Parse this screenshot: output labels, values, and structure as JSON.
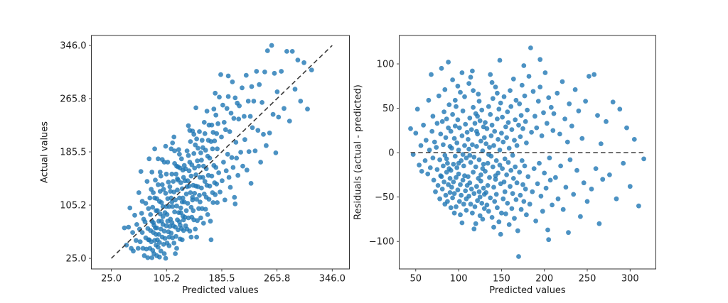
{
  "figure": {
    "background": "#ffffff",
    "marker_color": "#1f77b4",
    "marker_opacity": 0.8,
    "spine_color": "#333333",
    "refline_color": "#3a3a3a"
  },
  "chart_data": [
    {
      "type": "scatter",
      "title": "",
      "xlabel": "Predicted values",
      "ylabel": "Actual values",
      "xlim": [
        -4,
        371
      ],
      "ylim": [
        9,
        361
      ],
      "grid": false,
      "legend": "none",
      "xticks": {
        "values": [
          25,
          105.25,
          185.5,
          265.75,
          346
        ],
        "labels": [
          "25.0",
          "105.2",
          "185.5",
          "265.8",
          "346.0"
        ]
      },
      "yticks": {
        "values": [
          25,
          105.25,
          185.5,
          265.75,
          346
        ],
        "labels": [
          "25.0",
          "105.2",
          "185.5",
          "265.8",
          "346.0"
        ]
      },
      "reference_line": {
        "kind": "identity",
        "style": "dashed",
        "x1": 25,
        "y1": 25,
        "x2": 346,
        "y2": 346
      },
      "point_mapping": "x=predicted, y=predicted+residual"
    },
    {
      "type": "scatter",
      "title": "",
      "xlabel": "Predicted values",
      "ylabel": "Residuals (actual - predicted)",
      "xlim": [
        30.7,
        330
      ],
      "ylim": [
        -131,
        132
      ],
      "grid": false,
      "legend": "none",
      "xticks": {
        "values": [
          50,
          100,
          150,
          200,
          250,
          300
        ],
        "labels": [
          "50",
          "100",
          "150",
          "200",
          "250",
          "300"
        ]
      },
      "yticks": {
        "values": [
          -100,
          -50,
          0,
          50,
          100
        ],
        "labels": [
          "−100",
          "−50",
          "0",
          "50",
          "100"
        ]
      },
      "reference_line": {
        "kind": "zero",
        "style": "dashed",
        "x1": 44,
        "y1": 0,
        "x2": 317,
        "y2": 0
      },
      "point_mapping": "x=predicted, y=residual"
    }
  ],
  "dataset": {
    "points_predicted_residual": [
      [
        44,
        27
      ],
      [
        47,
        -2
      ],
      [
        50,
        22
      ],
      [
        52,
        49
      ],
      [
        54,
        -14
      ],
      [
        56,
        8
      ],
      [
        57,
        -21
      ],
      [
        59,
        31
      ],
      [
        61,
        -9
      ],
      [
        62,
        14
      ],
      [
        64,
        -24
      ],
      [
        65,
        59
      ],
      [
        66,
        3
      ],
      [
        67,
        -17
      ],
      [
        68,
        88
      ],
      [
        69,
        24
      ],
      [
        70,
        -6
      ],
      [
        70,
        41
      ],
      [
        71,
        -31
      ],
      [
        72,
        12
      ],
      [
        73,
        -44
      ],
      [
        74,
        6
      ],
      [
        75,
        -19
      ],
      [
        75,
        33
      ],
      [
        76,
        -37
      ],
      [
        77,
        64
      ],
      [
        78,
        -8
      ],
      [
        78,
        -52
      ],
      [
        79,
        21
      ],
      [
        80,
        -27
      ],
      [
        80,
        95
      ],
      [
        81,
        -41
      ],
      [
        82,
        9
      ],
      [
        82,
        -15
      ],
      [
        83,
        46
      ],
      [
        83,
        -33
      ],
      [
        84,
        -3
      ],
      [
        84,
        71
      ],
      [
        85,
        -48
      ],
      [
        85,
        17
      ],
      [
        86,
        -22
      ],
      [
        86,
        38
      ],
      [
        87,
        -55
      ],
      [
        87,
        -12
      ],
      [
        88,
        28
      ],
      [
        88,
        -36
      ],
      [
        89,
        54
      ],
      [
        89,
        -18
      ],
      [
        90,
        -45
      ],
      [
        90,
        7
      ],
      [
        90,
        -29
      ],
      [
        88,
        102
      ],
      [
        86,
        -7
      ],
      [
        84,
        -58
      ],
      [
        81,
        35
      ],
      [
        79,
        -26
      ],
      [
        91,
        -20
      ],
      [
        91,
        24
      ],
      [
        92,
        -39
      ],
      [
        92,
        5
      ],
      [
        93,
        -51
      ],
      [
        93,
        43
      ],
      [
        94,
        -13
      ],
      [
        94,
        -33
      ],
      [
        95,
        16
      ],
      [
        95,
        -46
      ],
      [
        96,
        -4
      ],
      [
        96,
        59
      ],
      [
        97,
        -28
      ],
      [
        97,
        -61
      ],
      [
        98,
        11
      ],
      [
        98,
        -17
      ],
      [
        99,
        -42
      ],
      [
        99,
        37
      ],
      [
        100,
        -24
      ],
      [
        100,
        3
      ],
      [
        101,
        -55
      ],
      [
        101,
        28
      ],
      [
        102,
        -36
      ],
      [
        102,
        68
      ],
      [
        103,
        -9
      ],
      [
        103,
        -48
      ],
      [
        104,
        -79
      ],
      [
        104,
        19
      ],
      [
        105,
        -31
      ],
      [
        105,
        47
      ],
      [
        106,
        -15
      ],
      [
        106,
        -58
      ],
      [
        107,
        8
      ],
      [
        107,
        -26
      ],
      [
        108,
        -43
      ],
      [
        108,
        32
      ],
      [
        109,
        -6
      ],
      [
        109,
        -65
      ],
      [
        110,
        23
      ],
      [
        110,
        -37
      ],
      [
        104,
        90
      ],
      [
        102,
        -70
      ],
      [
        99,
        75
      ],
      [
        97,
        52
      ],
      [
        95,
        -68
      ],
      [
        93,
        82
      ],
      [
        107,
        63
      ],
      [
        109,
        -52
      ],
      [
        91,
        -62
      ],
      [
        96,
        30
      ],
      [
        100,
        -12
      ],
      [
        105,
        -2
      ],
      [
        111,
        -27
      ],
      [
        111,
        15
      ],
      [
        112,
        -49
      ],
      [
        112,
        4
      ],
      [
        113,
        -34
      ],
      [
        113,
        39
      ],
      [
        114,
        -58
      ],
      [
        114,
        -11
      ],
      [
        115,
        26
      ],
      [
        115,
        -41
      ],
      [
        116,
        -68
      ],
      [
        116,
        9
      ],
      [
        117,
        -22
      ],
      [
        117,
        51
      ],
      [
        118,
        -46
      ],
      [
        118,
        -5
      ],
      [
        119,
        33
      ],
      [
        119,
        -61
      ],
      [
        120,
        -16
      ],
      [
        120,
        44
      ],
      [
        121,
        -38
      ],
      [
        121,
        7
      ],
      [
        122,
        -54
      ],
      [
        122,
        21
      ],
      [
        123,
        -29
      ],
      [
        123,
        66
      ],
      [
        124,
        -8
      ],
      [
        124,
        -44
      ],
      [
        125,
        36
      ],
      [
        125,
        -71
      ],
      [
        126,
        13
      ],
      [
        126,
        -25
      ],
      [
        127,
        -57
      ],
      [
        127,
        48
      ],
      [
        128,
        -18
      ],
      [
        128,
        2
      ],
      [
        129,
        -40
      ],
      [
        129,
        29
      ],
      [
        130,
        -63
      ],
      [
        130,
        17
      ],
      [
        112,
        78
      ],
      [
        116,
        92
      ],
      [
        120,
        -80
      ],
      [
        124,
        58
      ],
      [
        128,
        -75
      ],
      [
        113,
        -3
      ],
      [
        117,
        70
      ],
      [
        121,
        24
      ],
      [
        125,
        -50
      ],
      [
        129,
        -13
      ],
      [
        114,
        85
      ],
      [
        118,
        -86
      ],
      [
        122,
        41
      ],
      [
        126,
        -32
      ],
      [
        130,
        -47
      ],
      [
        131,
        -21
      ],
      [
        131,
        34
      ],
      [
        132,
        -45
      ],
      [
        132,
        10
      ],
      [
        133,
        -59
      ],
      [
        133,
        27
      ],
      [
        134,
        -12
      ],
      [
        134,
        -37
      ],
      [
        135,
        52
      ],
      [
        135,
        -66
      ],
      [
        136,
        6
      ],
      [
        136,
        -28
      ],
      [
        137,
        43
      ],
      [
        137,
        -51
      ],
      [
        138,
        -4
      ],
      [
        138,
        19
      ],
      [
        139,
        -73
      ],
      [
        139,
        31
      ],
      [
        140,
        -16
      ],
      [
        140,
        61
      ],
      [
        141,
        -39
      ],
      [
        141,
        8
      ],
      [
        142,
        -55
      ],
      [
        142,
        24
      ],
      [
        143,
        -30
      ],
      [
        143,
        74
      ],
      [
        144,
        -9
      ],
      [
        144,
        -47
      ],
      [
        145,
        38
      ],
      [
        145,
        -62
      ],
      [
        146,
        15
      ],
      [
        146,
        -23
      ],
      [
        147,
        -78
      ],
      [
        147,
        49
      ],
      [
        148,
        -14
      ],
      [
        148,
        3
      ],
      [
        149,
        -35
      ],
      [
        149,
        56
      ],
      [
        150,
        -68
      ],
      [
        150,
        22
      ],
      [
        148,
        104
      ],
      [
        137,
        88
      ],
      [
        141,
        -84
      ],
      [
        145,
        67
      ],
      [
        149,
        -92
      ],
      [
        135,
        -2
      ],
      [
        139,
        79
      ],
      [
        143,
        -26
      ],
      [
        151,
        -18
      ],
      [
        151,
        40
      ],
      [
        152,
        -52
      ],
      [
        152,
        12
      ],
      [
        153,
        -33
      ],
      [
        153,
        63
      ],
      [
        154,
        -7
      ],
      [
        154,
        -44
      ],
      [
        155,
        29
      ],
      [
        155,
        -69
      ],
      [
        156,
        17
      ],
      [
        156,
        -25
      ],
      [
        157,
        -57
      ],
      [
        157,
        46
      ],
      [
        158,
        -11
      ],
      [
        158,
        34
      ],
      [
        159,
        -81
      ],
      [
        159,
        5
      ],
      [
        160,
        -38
      ],
      [
        160,
        70
      ],
      [
        161,
        -20
      ],
      [
        161,
        52
      ],
      [
        162,
        -63
      ],
      [
        162,
        26
      ],
      [
        163,
        -3
      ],
      [
        163,
        -46
      ],
      [
        164,
        83
      ],
      [
        164,
        -29
      ],
      [
        165,
        14
      ],
      [
        165,
        -74
      ],
      [
        166,
        37
      ],
      [
        166,
        -16
      ],
      [
        167,
        -53
      ],
      [
        167,
        59
      ],
      [
        168,
        -34
      ],
      [
        168,
        8
      ],
      [
        169,
        -88
      ],
      [
        170,
        -117
      ],
      [
        170,
        31
      ],
      [
        171,
        -22
      ],
      [
        171,
        55
      ],
      [
        172,
        -48
      ],
      [
        172,
        18
      ],
      [
        173,
        -64
      ],
      [
        173,
        42
      ],
      [
        174,
        -9
      ],
      [
        174,
        76
      ],
      [
        175,
        -36
      ],
      [
        175,
        27
      ],
      [
        176,
        -55
      ],
      [
        176,
        98
      ],
      [
        177,
        -15
      ],
      [
        177,
        64
      ],
      [
        178,
        -41
      ],
      [
        178,
        35
      ],
      [
        179,
        -70
      ],
      [
        179,
        11
      ],
      [
        180,
        48
      ],
      [
        181,
        -27
      ],
      [
        182,
        86
      ],
      [
        183,
        -58
      ],
      [
        184,
        118
      ],
      [
        185,
        23
      ],
      [
        186,
        -44
      ],
      [
        187,
        69
      ],
      [
        188,
        -18
      ],
      [
        189,
        41
      ],
      [
        190,
        -77
      ],
      [
        191,
        28
      ],
      [
        192,
        -35
      ],
      [
        193,
        58
      ],
      [
        194,
        -12
      ],
      [
        195,
        74
      ],
      [
        196,
        -49
      ],
      [
        197,
        19
      ],
      [
        198,
        -66
      ],
      [
        199,
        45
      ],
      [
        200,
        -23
      ],
      [
        201,
        90
      ],
      [
        202,
        -40
      ],
      [
        203,
        33
      ],
      [
        204,
        -87
      ],
      [
        205,
        62
      ],
      [
        206,
        -6
      ],
      [
        207,
        -31
      ],
      [
        208,
        51
      ],
      [
        209,
        -59
      ],
      [
        210,
        25
      ],
      [
        195,
        105
      ],
      [
        205,
        -98
      ],
      [
        211,
        44
      ],
      [
        213,
        -28
      ],
      [
        215,
        67
      ],
      [
        216,
        -52
      ],
      [
        218,
        21
      ],
      [
        219,
        -15
      ],
      [
        221,
        80
      ],
      [
        222,
        -64
      ],
      [
        224,
        38
      ],
      [
        225,
        -39
      ],
      [
        227,
        12
      ],
      [
        228,
        -90
      ],
      [
        229,
        55
      ],
      [
        230,
        -8
      ],
      [
        232,
        30
      ],
      [
        234,
        -47
      ],
      [
        236,
        71
      ],
      [
        238,
        -20
      ],
      [
        240,
        47
      ],
      [
        242,
        -72
      ],
      [
        244,
        16
      ],
      [
        246,
        -34
      ],
      [
        248,
        58
      ],
      [
        250,
        -55
      ],
      [
        252,
        86
      ],
      [
        255,
        -41
      ],
      [
        258,
        88
      ],
      [
        260,
        -18
      ],
      [
        262,
        42
      ],
      [
        264,
        -80
      ],
      [
        266,
        10
      ],
      [
        268,
        -30
      ],
      [
        272,
        35
      ],
      [
        276,
        -25
      ],
      [
        280,
        57
      ],
      [
        284,
        -52
      ],
      [
        288,
        49
      ],
      [
        292,
        -12
      ],
      [
        296,
        28
      ],
      [
        300,
        -38
      ],
      [
        305,
        15
      ],
      [
        310,
        -60
      ],
      [
        316,
        -7
      ]
    ]
  }
}
